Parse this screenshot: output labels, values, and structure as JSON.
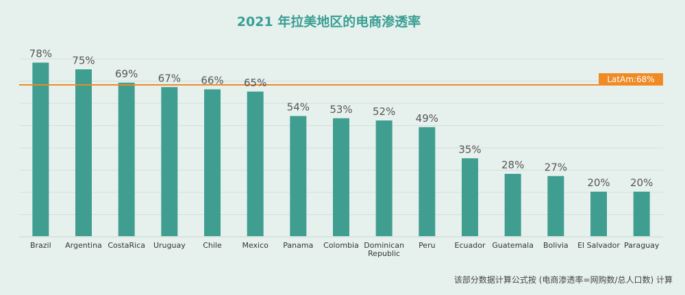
{
  "chart_data": {
    "type": "bar",
    "title": "2021 年拉美地区的电商渗透率",
    "footnote": "该部分数据计算公式按 (电商渗透率=网购数/总人口数) 计算",
    "categories": [
      "Brazil",
      "Argentina",
      "CostaRica",
      "Uruguay",
      "Chile",
      "Mexico",
      "Panama",
      "Colombia",
      "Dominican Republic",
      "Peru",
      "Ecuador",
      "Guatemala",
      "Bolivia",
      "El Salvador",
      "Paraguay"
    ],
    "values": [
      78,
      75,
      69,
      67,
      66,
      65,
      54,
      53,
      52,
      49,
      35,
      28,
      27,
      20,
      20
    ],
    "value_labels": [
      "78%",
      "75%",
      "69%",
      "67%",
      "66%",
      "65%",
      "54%",
      "53%",
      "52%",
      "49%",
      "35%",
      "28%",
      "27%",
      "20%",
      "20%"
    ],
    "reference_line": {
      "label": "LatAm:68%",
      "value": 68,
      "color": "#f08a24"
    },
    "ylim": [
      0,
      80
    ],
    "grid": true,
    "colors": {
      "bar": "#3f9e90",
      "background": "#e6f1ee",
      "title": "#3a9e92"
    }
  }
}
